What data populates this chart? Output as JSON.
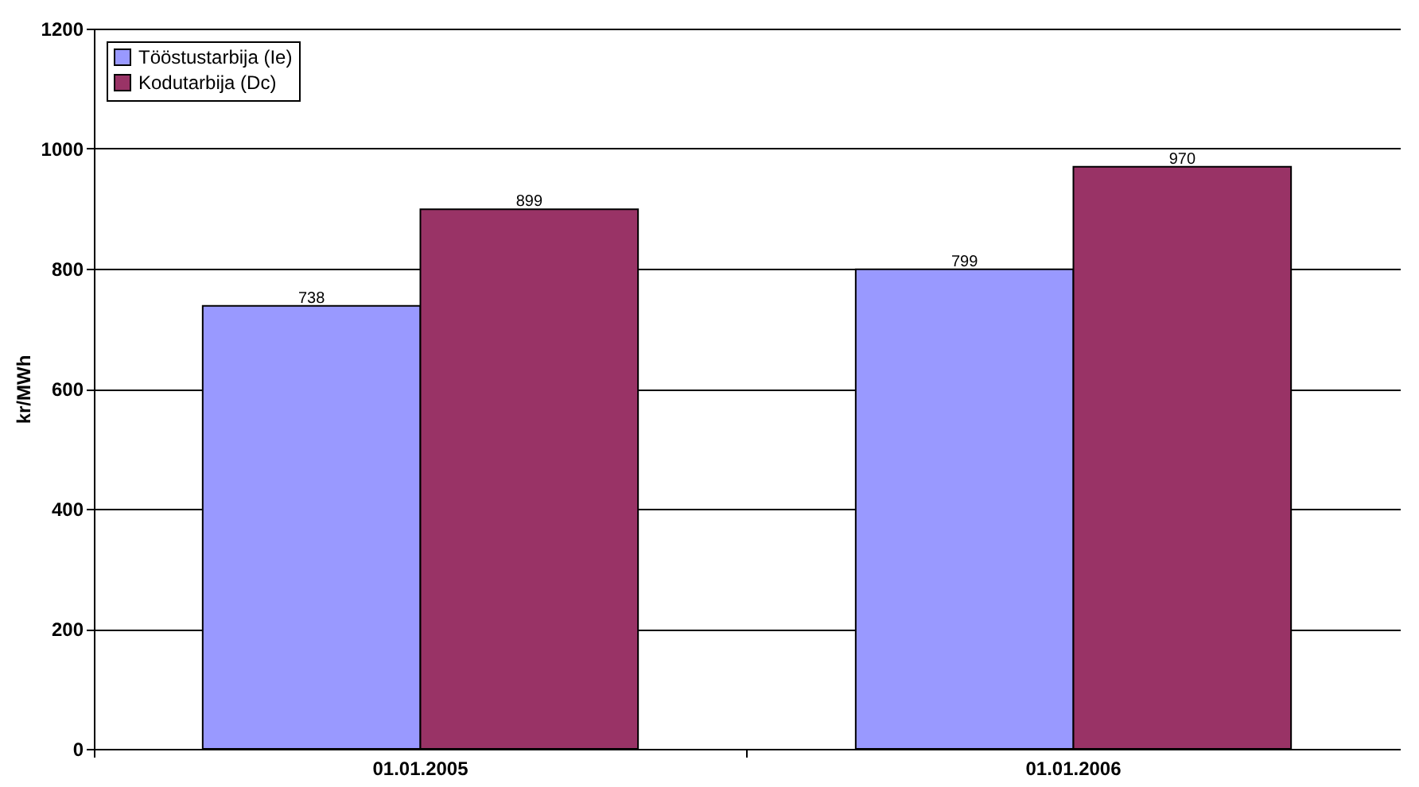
{
  "chart_data": {
    "type": "bar",
    "ylabel": "kr/MWh",
    "categories": [
      "01.01.2005",
      "01.01.2006"
    ],
    "series": [
      {
        "name": "Tööstustarbija (Ie)",
        "color": "#9999ff",
        "values": [
          738,
          799
        ]
      },
      {
        "name": "Kodutarbija (Dc)",
        "color": "#993366",
        "values": [
          899,
          970
        ]
      }
    ],
    "ylim": [
      0,
      1200
    ],
    "yticks": [
      0,
      200,
      400,
      600,
      800,
      1000,
      1200
    ],
    "grid": "y",
    "legend": "top left",
    "data_labels": true
  }
}
